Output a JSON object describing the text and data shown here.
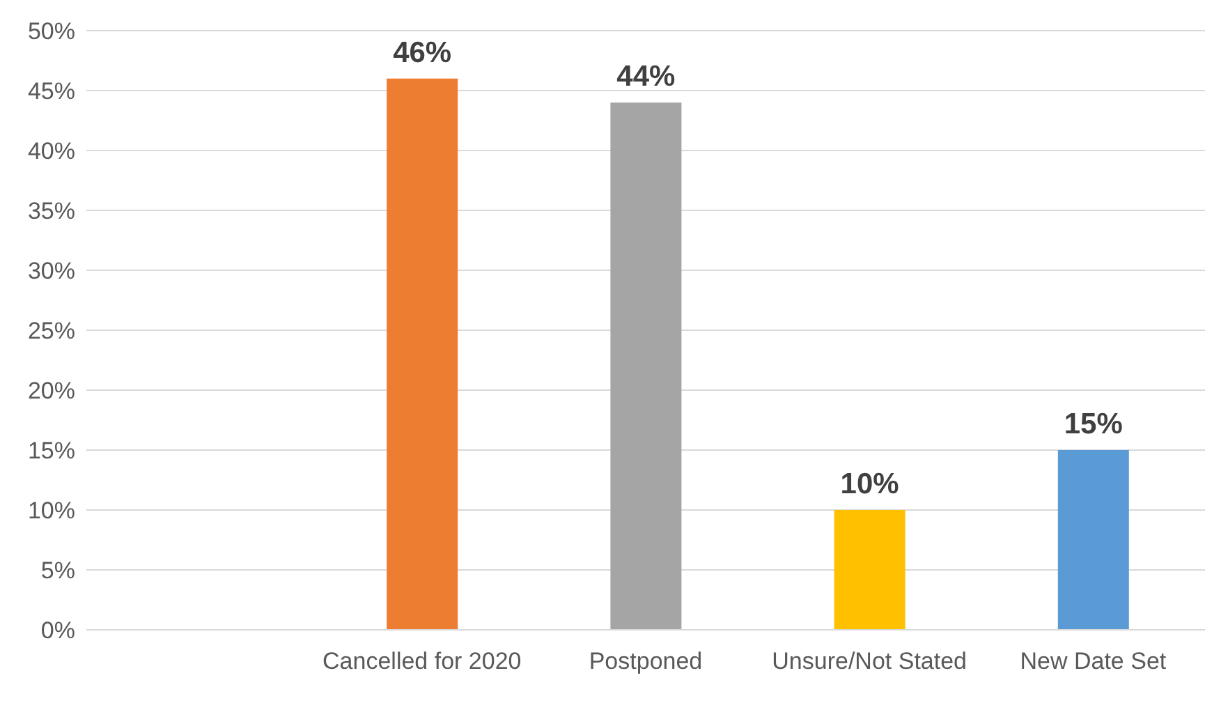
{
  "chart_data": {
    "type": "bar",
    "categories": [
      null,
      "Cancelled for 2020",
      "Postponed",
      "Unsure/Not Stated",
      "New Date Set"
    ],
    "values": [
      null,
      46,
      44,
      10,
      15
    ],
    "colors": [
      "#ed7d31",
      "#ed7d31",
      "#a5a5a5",
      "#ffc000",
      "#5b9bd5"
    ],
    "value_labels": [
      null,
      "46%",
      "44%",
      "10%",
      "15%"
    ],
    "ylim": [
      0,
      50
    ],
    "yticks": [
      {
        "value": 0,
        "label": "0%"
      },
      {
        "value": 5,
        "label": "5%"
      },
      {
        "value": 10,
        "label": "10%"
      },
      {
        "value": 15,
        "label": "15%"
      },
      {
        "value": 20,
        "label": "20%"
      },
      {
        "value": 25,
        "label": "25%"
      },
      {
        "value": 30,
        "label": "30%"
      },
      {
        "value": 35,
        "label": "35%"
      },
      {
        "value": 40,
        "label": "40%"
      },
      {
        "value": 45,
        "label": "45%"
      },
      {
        "value": 50,
        "label": "50%"
      }
    ],
    "grid": "y"
  }
}
